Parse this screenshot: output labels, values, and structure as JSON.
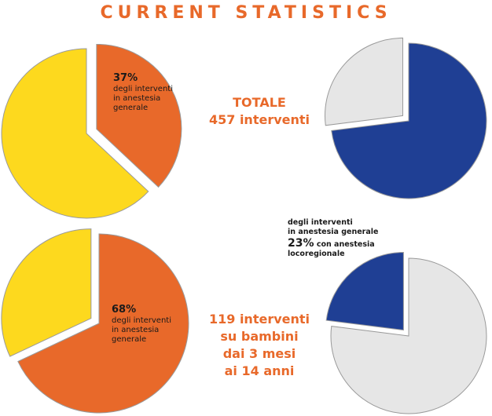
{
  "title": "CURRENT STATISTICS",
  "colors": {
    "orange": "#E8692A",
    "yellow": "#FDD91E",
    "blue": "#1F3F94",
    "gray": "#E6E6E6",
    "outline": "#9a9a9a",
    "title": "#E8692A"
  },
  "chart_data": [
    {
      "type": "pie",
      "slices": [
        {
          "label": "degli interventi in anestesia generale",
          "value": 37,
          "color": "#E8692A",
          "exploded": true
        },
        {
          "label": "",
          "value": 63,
          "color": "#FDD91E",
          "exploded": false
        }
      ],
      "annotation": {
        "percent": "37%",
        "line1": "degli interventi",
        "line2": "in anestesia",
        "line3": "generale"
      }
    },
    {
      "type": "pie",
      "slices": [
        {
          "label": "",
          "value": 27,
          "color": "#E6E6E6",
          "exploded": true
        },
        {
          "label": "",
          "value": 73,
          "color": "#1F3F94",
          "exploded": false
        }
      ]
    },
    {
      "type": "pie",
      "slices": [
        {
          "label": "",
          "value": 32,
          "color": "#FDD91E",
          "exploded": true
        },
        {
          "label": "degli interventi in anestesia generale",
          "value": 68,
          "color": "#E8692A",
          "exploded": false
        }
      ],
      "annotation": {
        "percent": "68%",
        "line1": "degli interventi",
        "line2": "in anestesia",
        "line3": "generale"
      }
    },
    {
      "type": "pie",
      "slices": [
        {
          "label": "con anestesia locoregionale",
          "value": 23,
          "color": "#1F3F94",
          "exploded": true
        },
        {
          "label": "",
          "value": 77,
          "color": "#E6E6E6",
          "exploded": false
        }
      ],
      "annotation": {
        "header1": "degli interventi",
        "header2": "in anestesia generale",
        "percent": "23%",
        "line1": "con anestesia",
        "line2": "locoregionale"
      }
    }
  ],
  "texts": {
    "totale": "TOTALE",
    "totale_count": "457 interventi",
    "children_line1": "119 interventi",
    "children_line2": "su bambini",
    "children_line3": "dai 3 mesi",
    "children_line4": "ai 14 anni"
  }
}
